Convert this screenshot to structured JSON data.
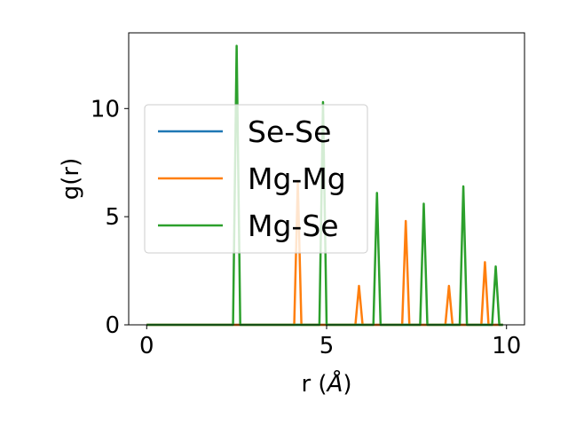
{
  "chart_data": {
    "type": "line",
    "title": "",
    "xlabel": "r (",
    "xlabel_unit": "Å",
    "xlabel_close": ")",
    "ylabel": "g(r)",
    "xlim": [
      -0.5,
      10.5
    ],
    "ylim": [
      0,
      13.5
    ],
    "xticks": [
      0,
      5,
      10
    ],
    "yticks": [
      0,
      5,
      10
    ],
    "grid": false,
    "legend_position": "center-left",
    "series": [
      {
        "name": "Se-Se",
        "color": "#1f77b4",
        "x": [
          0,
          9.9
        ],
        "y": [
          0,
          0
        ]
      },
      {
        "name": "Mg-Mg",
        "color": "#ff7f0e",
        "x": [
          0,
          4.1,
          4.2,
          4.3,
          5.8,
          5.9,
          6.0,
          7.1,
          7.2,
          7.3,
          8.3,
          8.4,
          8.5,
          9.3,
          9.4,
          9.5,
          9.9
        ],
        "y": [
          0,
          0,
          6.6,
          0,
          0,
          1.8,
          0,
          0,
          4.8,
          0,
          0,
          1.8,
          0,
          0,
          2.9,
          0,
          0
        ]
      },
      {
        "name": "Mg-Se",
        "color": "#2ca02c",
        "x": [
          0,
          2.4,
          2.5,
          2.6,
          4.8,
          4.9,
          5.0,
          6.3,
          6.4,
          6.5,
          7.6,
          7.7,
          7.8,
          8.7,
          8.8,
          8.9,
          9.6,
          9.7,
          9.8,
          9.9
        ],
        "y": [
          0,
          0,
          12.9,
          0,
          0,
          10.3,
          0,
          0,
          6.1,
          0,
          0,
          5.6,
          0,
          0,
          6.4,
          0,
          0,
          2.7,
          0,
          0
        ]
      }
    ]
  }
}
